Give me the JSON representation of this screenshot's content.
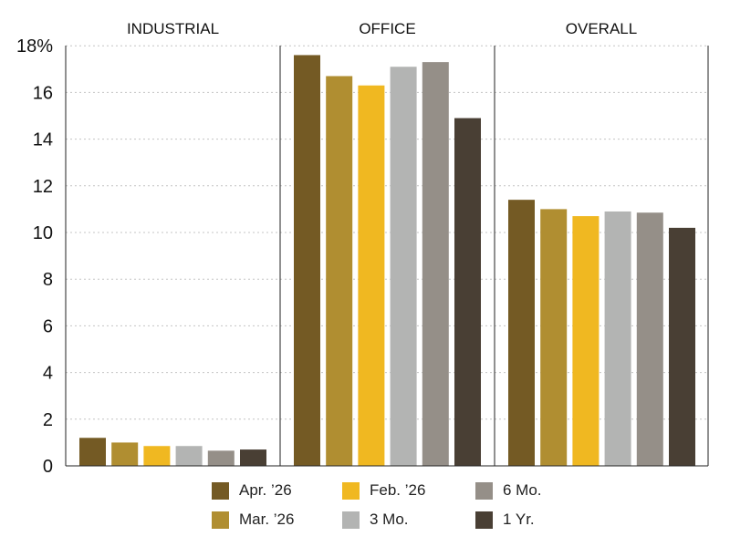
{
  "chart_data": {
    "type": "bar",
    "panels": [
      "INDUSTRIAL",
      "OFFICE",
      "OVERALL"
    ],
    "series": [
      {
        "name": "Apr. ’26",
        "color": "#745a24",
        "values": [
          1.2,
          17.6,
          11.4
        ]
      },
      {
        "name": "Mar. ’26",
        "color": "#b08e31",
        "values": [
          1.0,
          16.7,
          11.0
        ]
      },
      {
        "name": "Feb. ’26",
        "color": "#f0b821",
        "values": [
          0.85,
          16.3,
          10.7
        ]
      },
      {
        "name": "3 Mo.",
        "color": "#b3b4b3",
        "values": [
          0.85,
          17.1,
          10.9
        ]
      },
      {
        "name": "6 Mo.",
        "color": "#958f88",
        "values": [
          0.65,
          17.3,
          10.85
        ]
      },
      {
        "name": "1 Yr.",
        "color": "#493f34",
        "values": [
          0.7,
          14.9,
          10.2
        ]
      }
    ],
    "yaxis": {
      "min": 0,
      "max": 18,
      "ticks": [
        0,
        2,
        4,
        6,
        8,
        10,
        12,
        14,
        16,
        18
      ],
      "tick_labels": [
        "0",
        "2",
        "4",
        "6",
        "8",
        "10",
        "12",
        "14",
        "16",
        "18%"
      ],
      "grid": "dotted horizontal"
    },
    "legend": {
      "position": "bottom-center",
      "columns": 3
    }
  }
}
